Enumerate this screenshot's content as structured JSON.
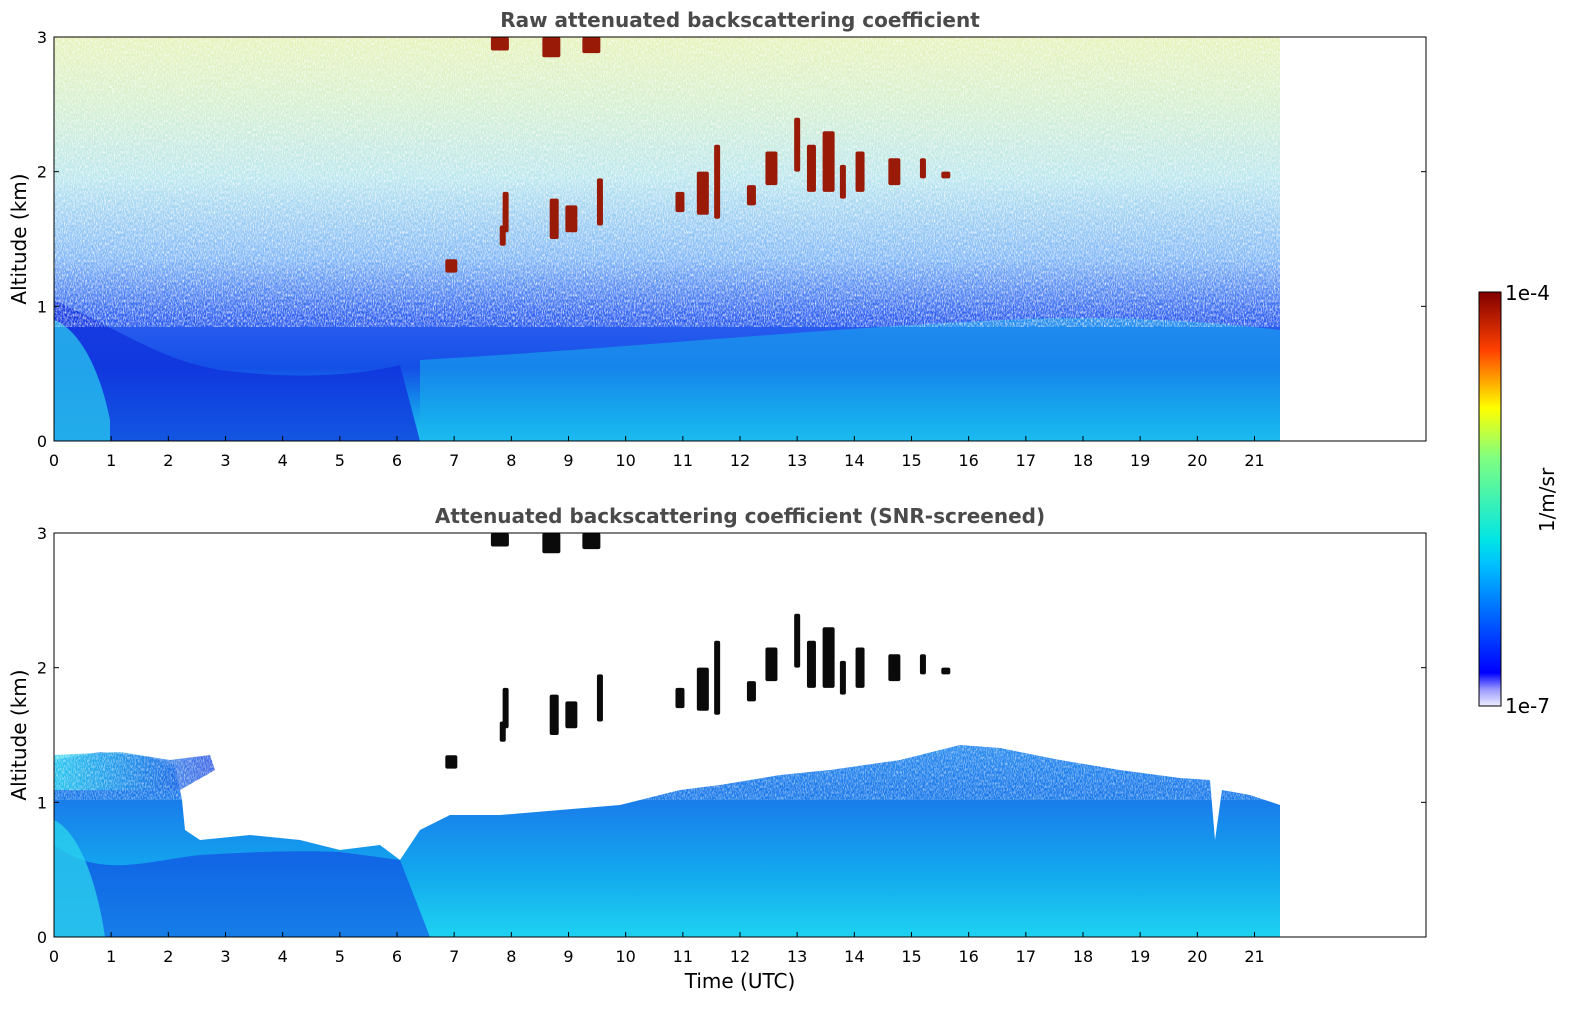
{
  "chart_data": [
    {
      "type": "heatmap",
      "title": "Raw attenuated backscattering coefficient",
      "ylabel": "Altitude (km)",
      "xlabel": "",
      "xlim": [
        0,
        24
      ],
      "ylim": [
        0,
        3
      ],
      "x_ticks": [
        "0",
        "1",
        "2",
        "3",
        "4",
        "5",
        "6",
        "7",
        "8",
        "9",
        "10",
        "11",
        "12",
        "13",
        "14",
        "15",
        "16",
        "17",
        "18",
        "19",
        "20",
        "21"
      ],
      "y_ticks": [
        "0",
        "1",
        "2",
        "3"
      ],
      "data_extent_hours": [
        0,
        21.45
      ],
      "screened": false,
      "features": {
        "noise_floor_km": 1.3,
        "boundary_layer_top_km": 0.75,
        "cloud_base_layer_km": [
          1.5,
          2.4
        ],
        "upper_cloud_km": [
          2.85,
          3.0
        ]
      }
    },
    {
      "type": "heatmap",
      "title": "Attenuated backscattering coefficient (SNR-screened)",
      "ylabel": "Altitude (km)",
      "xlabel": "Time (UTC)",
      "xlim": [
        0,
        24
      ],
      "ylim": [
        0,
        3
      ],
      "x_ticks": [
        "0",
        "1",
        "2",
        "3",
        "4",
        "5",
        "6",
        "7",
        "8",
        "9",
        "10",
        "11",
        "12",
        "13",
        "14",
        "15",
        "16",
        "17",
        "18",
        "19",
        "20",
        "21"
      ],
      "y_ticks": [
        "0",
        "1",
        "2",
        "3"
      ],
      "data_extent_hours": [
        0,
        21.45
      ],
      "screened": true,
      "features": {
        "residual_layer_km": [
          1.1,
          1.35
        ],
        "boundary_layer_top_km": 0.75,
        "cloud_base_layer_km": [
          1.5,
          2.4
        ],
        "upper_cloud_km": [
          2.85,
          3.0
        ]
      }
    }
  ],
  "colorbar": {
    "label": "1/m/sr",
    "max_label": "1e-4",
    "min_label": "1e-7",
    "colormap": "jet",
    "scale": "log"
  }
}
